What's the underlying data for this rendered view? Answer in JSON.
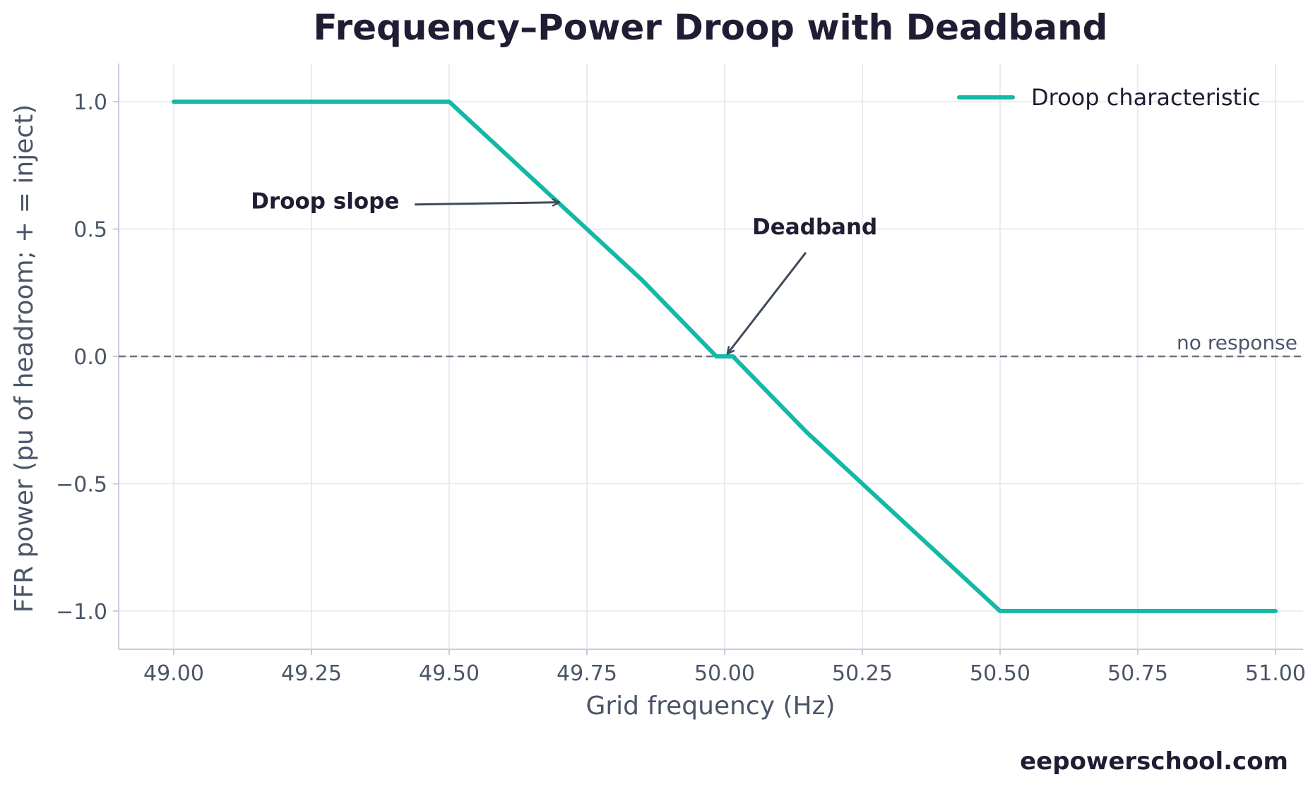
{
  "chart_data": {
    "type": "line",
    "title": "Frequency–Power Droop with Deadband",
    "xlabel": "Grid frequency (Hz)",
    "ylabel": "FFR power (pu of headroom; + = inject)",
    "xlim": [
      48.9,
      51.05
    ],
    "ylim": [
      -1.15,
      1.15
    ],
    "x_ticks": [
      49.0,
      49.25,
      49.5,
      49.75,
      50.0,
      50.25,
      50.5,
      50.75,
      51.0
    ],
    "x_tick_labels": [
      "49.00",
      "49.25",
      "49.50",
      "49.75",
      "50.00",
      "50.25",
      "50.50",
      "50.75",
      "51.00"
    ],
    "y_ticks": [
      1.0,
      0.5,
      0.0,
      -0.5,
      -1.0
    ],
    "y_tick_labels": [
      "1.0",
      "0.5",
      "0.0",
      "−0.5",
      "−1.0"
    ],
    "grid": true,
    "legend_position": "top-right",
    "series": [
      {
        "name": "Droop characteristic",
        "color": "#14b8a6",
        "x": [
          49.0,
          49.5,
          49.85,
          49.985,
          50.015,
          50.15,
          50.5,
          51.0
        ],
        "y": [
          1.0,
          1.0,
          0.3,
          0.0,
          0.0,
          -0.3,
          -1.0,
          -1.0
        ]
      }
    ],
    "reference_line": {
      "y": 0.0,
      "label": "no response",
      "color": "#6b7280",
      "style": "dashed"
    },
    "annotations": [
      {
        "text": "Droop slope",
        "text_x": 49.14,
        "text_y": 0.58,
        "arrow_x": 49.7,
        "arrow_y": 0.605
      },
      {
        "text": "Deadband",
        "text_x": 50.05,
        "text_y": 0.48,
        "arrow_x": 50.005,
        "arrow_y": 0.01
      }
    ]
  },
  "footer": {
    "watermark": "eepowerschool.com"
  }
}
